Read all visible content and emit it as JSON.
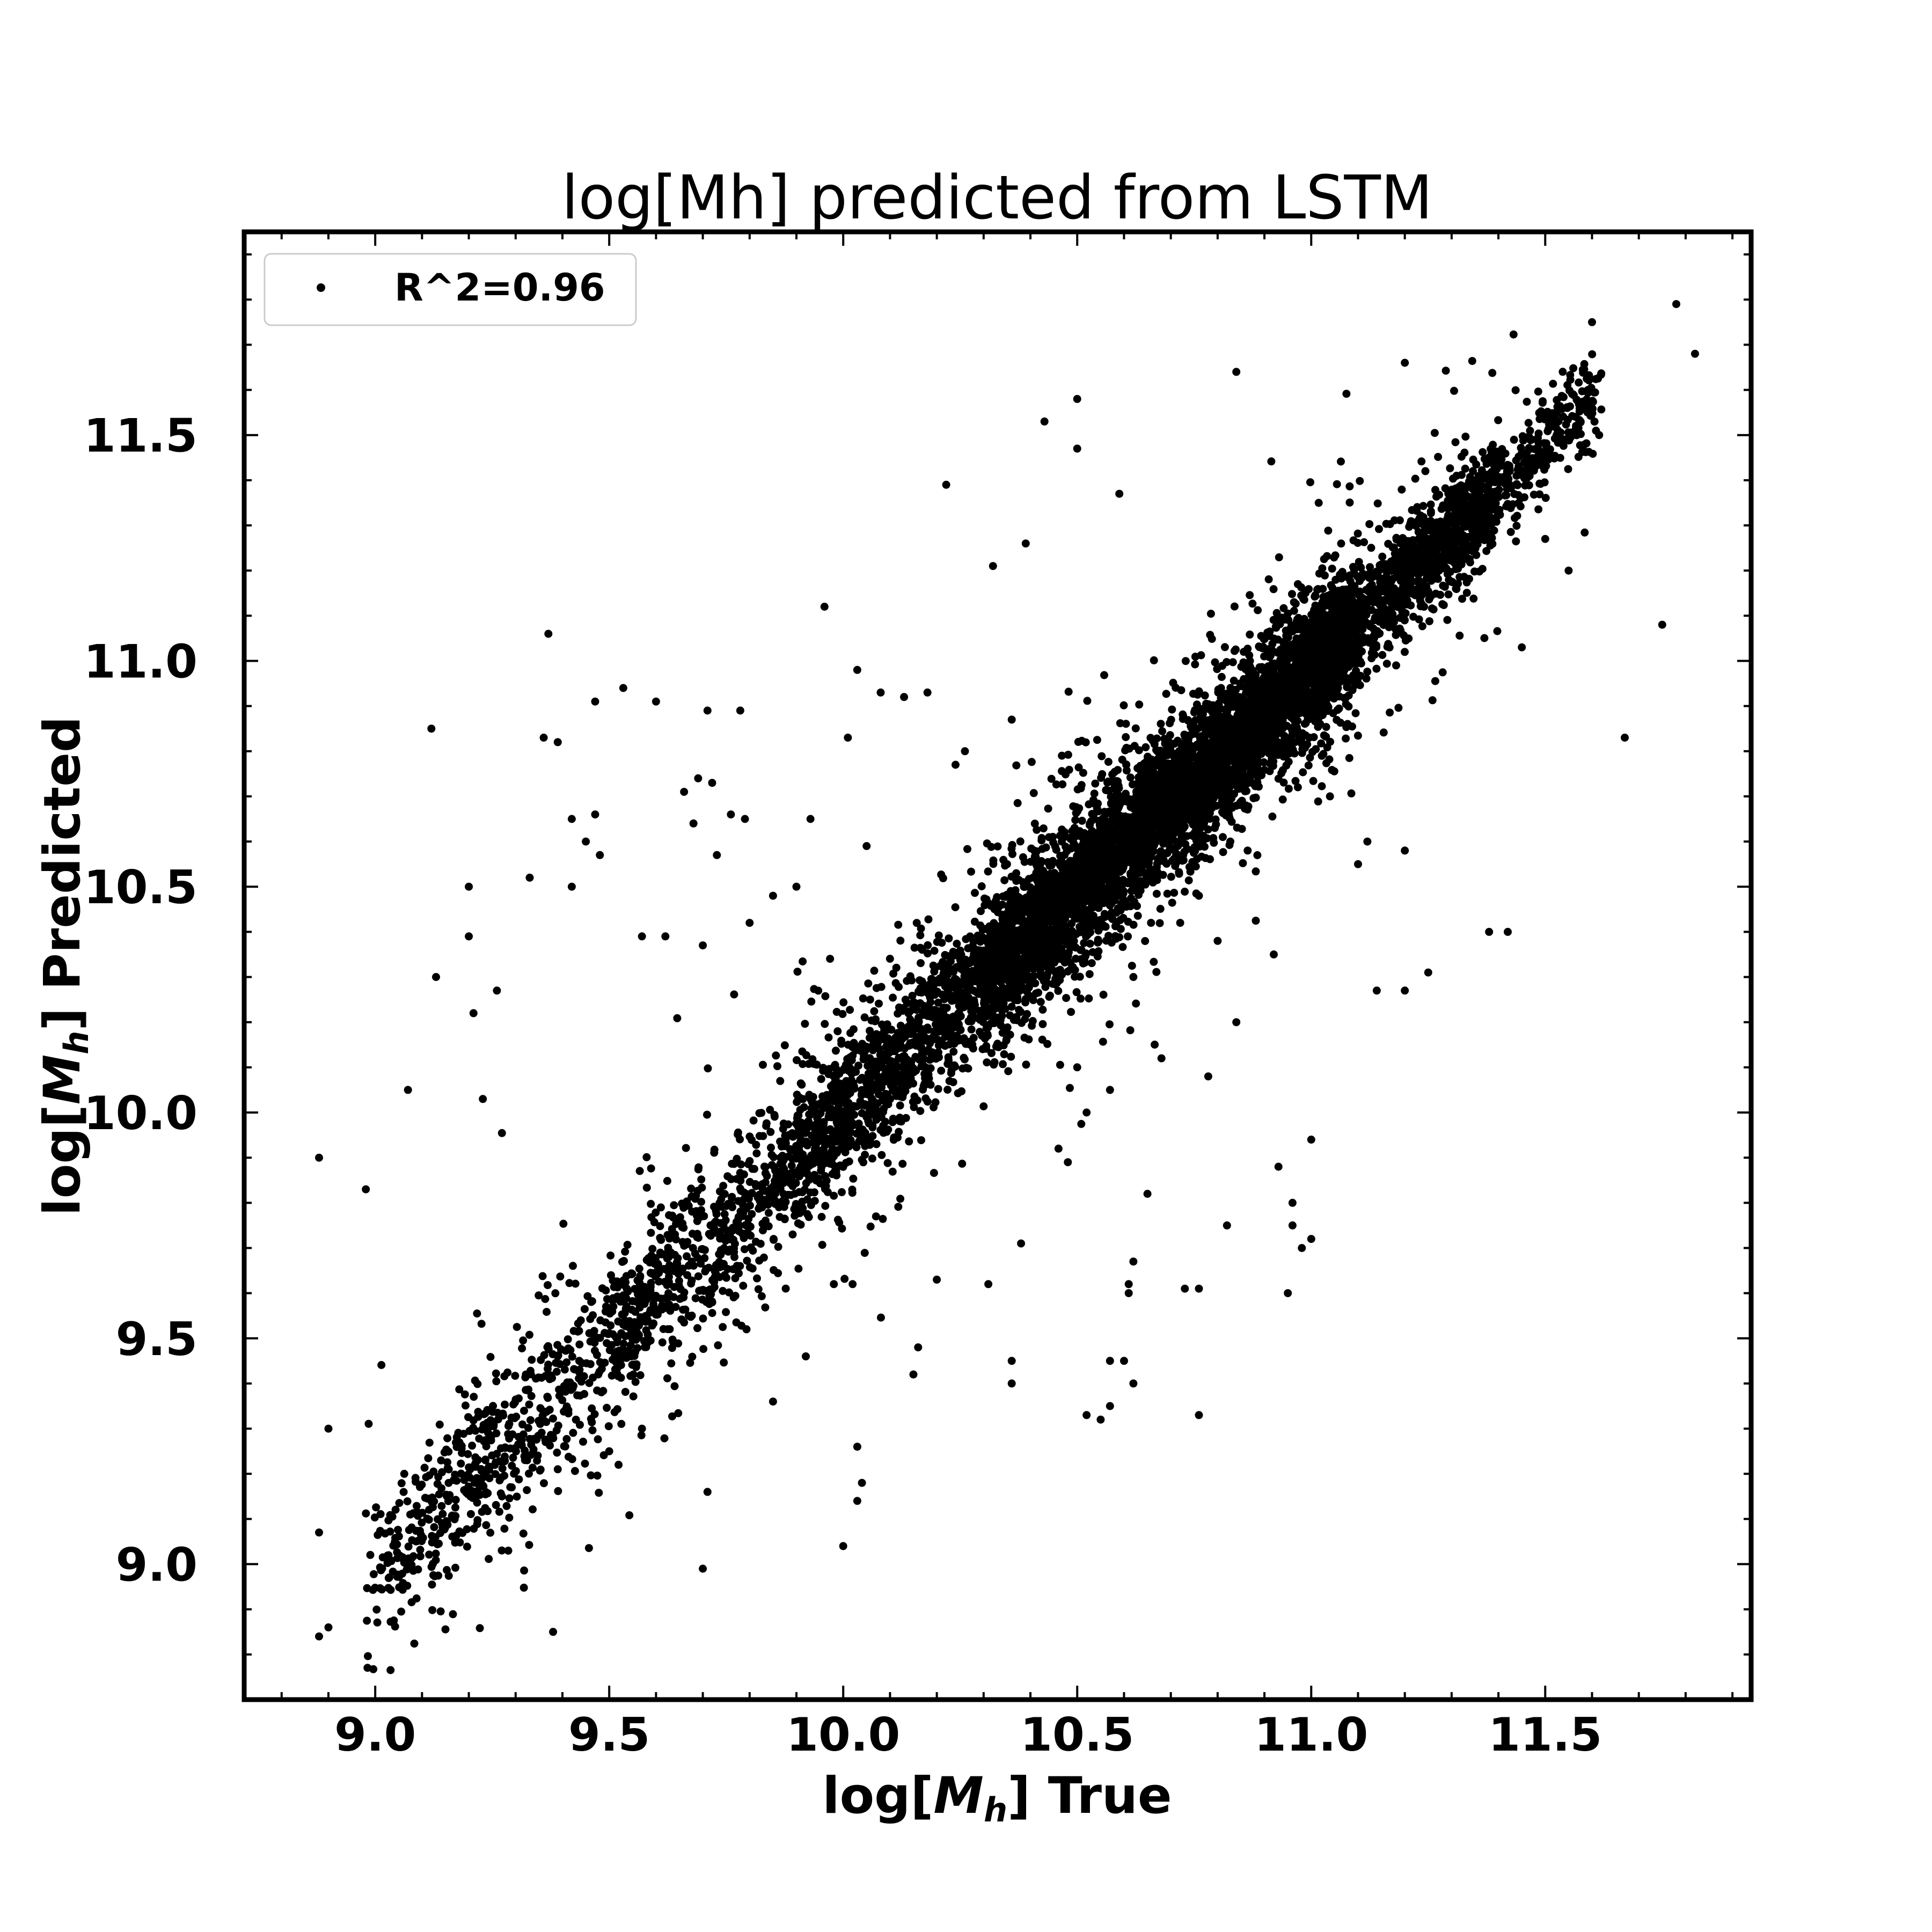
{
  "chart_data": {
    "type": "scatter",
    "title": "log[Mh] predicted from LSTM",
    "xlabel": "log[M_h] True",
    "ylabel": "log[M_h] Predicted",
    "xlabel_parts": {
      "prefix": "log[",
      "var": "M",
      "sub": "h",
      "suffix": "] True"
    },
    "ylabel_parts": {
      "prefix": "log[",
      "var": "M",
      "sub": "h",
      "suffix": "] Predicted"
    },
    "xlim": [
      8.72,
      11.94
    ],
    "ylim": [
      8.7,
      11.95
    ],
    "xticks": [
      9.0,
      9.5,
      10.0,
      10.5,
      11.0,
      11.5
    ],
    "xtick_labels": [
      "9.0",
      "9.5",
      "10.0",
      "10.5",
      "11.0",
      "11.5"
    ],
    "yticks": [
      9.0,
      9.5,
      10.0,
      10.5,
      11.0,
      11.5
    ],
    "ytick_labels": [
      "9.0",
      "9.5",
      "10.0",
      "10.5",
      "11.0",
      "11.5"
    ],
    "minor_tick_step": 0.1,
    "grid": false,
    "legend": {
      "position": "top-left",
      "entries": [
        "R^2=0.96"
      ]
    },
    "marker_color": "#000000",
    "series": [
      {
        "name": "R^2=0.96",
        "points": [
          [
            8.88,
            8.84
          ],
          [
            8.9,
            8.86
          ],
          [
            8.88,
            9.9
          ],
          [
            8.88,
            9.07
          ],
          [
            8.9,
            9.3
          ],
          [
            8.98,
            9.83
          ],
          [
            9.07,
            10.05
          ],
          [
            9.12,
            10.85
          ],
          [
            9.13,
            10.3
          ],
          [
            9.2,
            10.5
          ],
          [
            9.2,
            10.39
          ],
          [
            9.21,
            10.22
          ],
          [
            9.26,
            10.27
          ],
          [
            9.23,
            10.03
          ],
          [
            9.33,
            10.52
          ],
          [
            9.36,
            10.83
          ],
          [
            9.39,
            10.82
          ],
          [
            9.37,
            11.06
          ],
          [
            9.42,
            10.65
          ],
          [
            9.47,
            10.66
          ],
          [
            9.48,
            10.57
          ],
          [
            9.45,
            10.6
          ],
          [
            9.42,
            10.5
          ],
          [
            9.47,
            10.91
          ],
          [
            9.53,
            10.94
          ],
          [
            9.6,
            10.91
          ],
          [
            9.66,
            10.71
          ],
          [
            9.69,
            10.74
          ],
          [
            9.71,
            10.89
          ],
          [
            9.78,
            10.89
          ],
          [
            9.72,
            10.73
          ],
          [
            9.76,
            10.66
          ],
          [
            9.79,
            10.65
          ],
          [
            9.73,
            10.57
          ],
          [
            9.68,
            10.64
          ],
          [
            9.57,
            10.39
          ],
          [
            9.62,
            10.39
          ],
          [
            9.7,
            10.37
          ],
          [
            9.8,
            10.42
          ],
          [
            9.85,
            10.48
          ],
          [
            9.9,
            10.5
          ],
          [
            9.96,
            11.12
          ],
          [
            10.03,
            10.98
          ],
          [
            10.08,
            10.93
          ],
          [
            10.13,
            10.92
          ],
          [
            10.01,
            10.83
          ],
          [
            9.93,
            10.65
          ],
          [
            10.05,
            10.59
          ],
          [
            10.18,
            10.93
          ],
          [
            10.26,
            10.8
          ],
          [
            10.24,
            10.77
          ],
          [
            10.36,
            10.87
          ],
          [
            10.35,
            10.55
          ],
          [
            10.22,
            11.39
          ],
          [
            10.32,
            11.21
          ],
          [
            10.39,
            11.26
          ],
          [
            10.43,
            11.53
          ],
          [
            10.5,
            11.58
          ],
          [
            10.5,
            11.47
          ],
          [
            10.59,
            11.37
          ],
          [
            10.84,
            11.64
          ],
          [
            11.2,
            11.66
          ],
          [
            11.6,
            11.75
          ],
          [
            11.78,
            11.79
          ],
          [
            11.82,
            11.68
          ],
          [
            11.75,
            11.08
          ],
          [
            11.67,
            10.83
          ],
          [
            11.5,
            11.27
          ],
          [
            11.55,
            11.2
          ],
          [
            11.45,
            11.03
          ],
          [
            11.38,
            10.4
          ],
          [
            11.42,
            10.4
          ],
          [
            11.25,
            10.31
          ],
          [
            11.2,
            10.27
          ],
          [
            11.12,
            10.6
          ],
          [
            11.1,
            10.55
          ],
          [
            11.2,
            10.58
          ],
          [
            11.04,
            10.7
          ],
          [
            10.93,
            9.88
          ],
          [
            10.96,
            9.8
          ],
          [
            10.96,
            9.75
          ],
          [
            10.98,
            9.7
          ],
          [
            11.0,
            9.72
          ],
          [
            11.0,
            9.94
          ],
          [
            10.95,
            9.6
          ],
          [
            10.82,
            9.75
          ],
          [
            10.76,
            9.61
          ],
          [
            10.73,
            9.61
          ],
          [
            10.65,
            9.82
          ],
          [
            10.61,
            9.62
          ],
          [
            10.62,
            9.67
          ],
          [
            10.61,
            9.6
          ],
          [
            10.6,
            9.45
          ],
          [
            10.62,
            9.4
          ],
          [
            10.57,
            9.35
          ],
          [
            10.55,
            9.32
          ],
          [
            10.52,
            9.33
          ],
          [
            10.57,
            9.45
          ],
          [
            10.76,
            9.33
          ],
          [
            10.36,
            9.45
          ],
          [
            10.36,
            9.4
          ],
          [
            10.15,
            9.42
          ],
          [
            10.16,
            9.48
          ],
          [
            10.03,
            9.26
          ],
          [
            10.04,
            9.18
          ],
          [
            10.03,
            9.14
          ],
          [
            10.0,
            9.04
          ],
          [
            9.71,
            9.16
          ],
          [
            9.7,
            8.99
          ],
          [
            9.38,
            8.85
          ],
          [
            9.39,
            9.21
          ],
          [
            9.5,
            9.25
          ],
          [
            9.52,
            9.22
          ],
          [
            9.57,
            9.3
          ],
          [
            9.85,
            9.36
          ],
          [
            9.92,
            9.46
          ],
          [
            9.98,
            9.62
          ],
          [
            10.02,
            9.62
          ],
          [
            10.07,
            9.77
          ],
          [
            10.2,
            9.63
          ],
          [
            10.31,
            9.62
          ],
          [
            10.38,
            9.71
          ],
          [
            10.46,
            9.92
          ],
          [
            10.48,
            9.89
          ],
          [
            10.5,
            10.1
          ],
          [
            10.52,
            10.0
          ],
          [
            10.57,
            10.05
          ],
          [
            10.62,
            10.3
          ],
          [
            10.68,
            10.12
          ],
          [
            10.78,
            10.08
          ],
          [
            10.84,
            10.2
          ],
          [
            10.92,
            10.35
          ],
          [
            10.72,
            10.42
          ],
          [
            10.76,
            10.48
          ],
          [
            10.8,
            10.38
          ],
          [
            11.14,
            10.27
          ]
        ],
        "cloud_segments": [
          {
            "x_range": [
              8.98,
              9.15
            ],
            "y_at_x_start": 8.96,
            "slope": 1.04,
            "spread": 0.07,
            "count": 160
          },
          {
            "x_range": [
              9.15,
              9.5
            ],
            "y_at_x_start": 9.14,
            "slope": 1.02,
            "spread": 0.09,
            "count": 420
          },
          {
            "x_range": [
              9.5,
              9.9
            ],
            "y_at_x_start": 9.5,
            "slope": 1.0,
            "spread": 0.085,
            "count": 650
          },
          {
            "x_range": [
              9.9,
              10.3
            ],
            "y_at_x_start": 9.9,
            "slope": 1.0,
            "spread": 0.08,
            "count": 1100
          },
          {
            "x_range": [
              10.3,
              10.75
            ],
            "y_at_x_start": 10.3,
            "slope": 0.98,
            "spread": 0.075,
            "count": 2600
          },
          {
            "x_range": [
              10.75,
              11.1
            ],
            "y_at_x_start": 10.74,
            "slope": 0.98,
            "spread": 0.07,
            "count": 2300
          },
          {
            "x_range": [
              11.1,
              11.4
            ],
            "y_at_x_start": 11.08,
            "slope": 1.0,
            "spread": 0.06,
            "count": 900
          },
          {
            "x_range": [
              11.4,
              11.62
            ],
            "y_at_x_start": 11.38,
            "slope": 1.0,
            "spread": 0.05,
            "count": 260
          }
        ]
      }
    ]
  }
}
